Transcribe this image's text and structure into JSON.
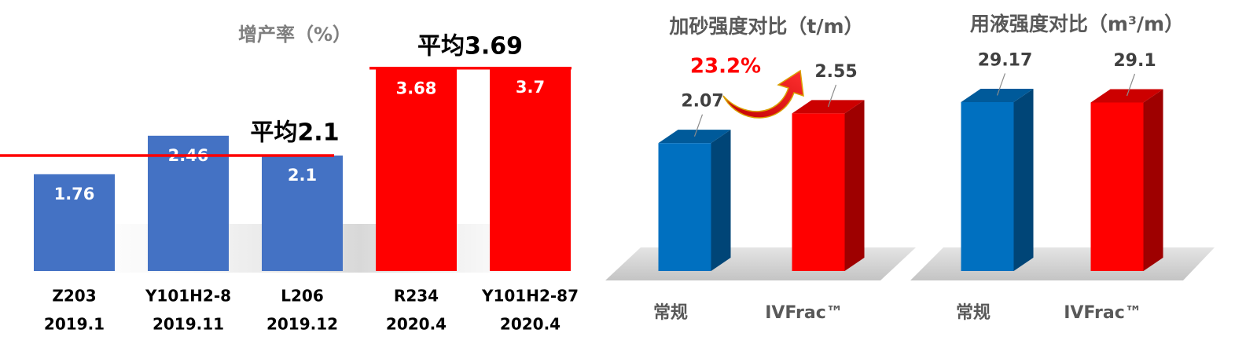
{
  "chart_data": [
    {
      "type": "bar",
      "title": "增产率（%）",
      "categories": [
        "Z203",
        "Y101H2-8",
        "L206",
        "R234",
        "Y101H2-87"
      ],
      "dates": [
        "2019.1",
        "2019.11",
        "2019.12",
        "2020.4",
        "2020.4"
      ],
      "values": [
        1.76,
        2.46,
        2.1,
        3.68,
        3.7
      ],
      "colors": [
        "#4472c4",
        "#4472c4",
        "#4472c4",
        "#ff0000",
        "#ff0000"
      ],
      "ylim": [
        0,
        4
      ],
      "averages": [
        {
          "label": "平均2.1",
          "value": 2.1
        },
        {
          "label": "平均3.69",
          "value": 3.69
        }
      ],
      "average_color": "#ff0000"
    },
    {
      "type": "bar3d",
      "title": "加砂强度对比（t/m）",
      "categories": [
        "常规",
        "IVFrac™"
      ],
      "values": [
        2.07,
        2.55
      ],
      "colors": [
        "#0070c0",
        "#ff0000"
      ],
      "ylim": [
        0,
        3
      ],
      "annotation": "23.2%"
    },
    {
      "type": "bar3d",
      "title": "用液强度对比（m³/m）",
      "categories": [
        "常规",
        "IVFrac™"
      ],
      "values": [
        29.17,
        29.1
      ],
      "colors": [
        "#0070c0",
        "#ff0000"
      ],
      "ylim": [
        0,
        35
      ]
    }
  ]
}
